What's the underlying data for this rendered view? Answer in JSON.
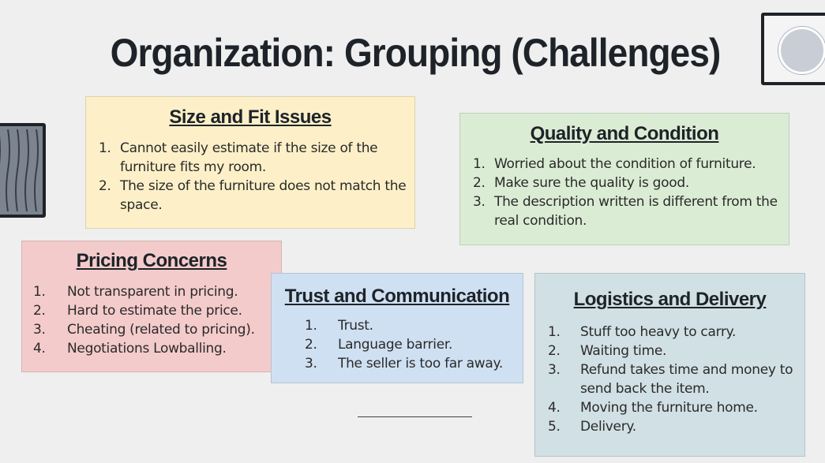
{
  "slide": {
    "title": "Organization: Grouping (Challenges)"
  },
  "cards": {
    "size": {
      "heading": "Size and Fit Issues",
      "color": "#fdf0c8",
      "items": [
        {
          "num": "1.",
          "text": "Cannot easily estimate if the size of the furniture fits my room."
        },
        {
          "num": "2.",
          "text": "The size of the furniture does not match the space."
        }
      ]
    },
    "quality": {
      "heading": "Quality and Condition",
      "color": "#dbecd4",
      "items": [
        {
          "num": "1.",
          "text": "Worried about the condition of furniture."
        },
        {
          "num": "2.",
          "text": "Make sure the quality is good."
        },
        {
          "num": "3.",
          "text": "The description written is different from the real condition."
        }
      ]
    },
    "pricing": {
      "heading": "Pricing Concerns",
      "color": "#f4cbcb",
      "items": [
        {
          "num": "1.",
          "text": "Not transparent in pricing."
        },
        {
          "num": "2.",
          "text": "Hard to estimate the price."
        },
        {
          "num": "3.",
          "text": "Cheating (related to pricing)."
        },
        {
          "num": "4.",
          "text": "Negotiations Lowballing."
        }
      ]
    },
    "trust": {
      "heading": "Trust and Communication",
      "color": "#cfe0f2",
      "items": [
        {
          "num": "1.",
          "text": "Trust."
        },
        {
          "num": "2.",
          "text": "Language barrier."
        },
        {
          "num": "3.",
          "text": "The seller is too far away."
        }
      ]
    },
    "logistics": {
      "heading": "Logistics and Delivery",
      "color": "#d1e0e4",
      "items": [
        {
          "num": "1.",
          "text": "Stuff too heavy to carry."
        },
        {
          "num": "2.",
          "text": "Waiting time."
        },
        {
          "num": "3.",
          "text": "Refund takes time and money to send back the item."
        },
        {
          "num": "4.",
          "text": "Moving the furniture home."
        },
        {
          "num": "5.",
          "text": "Delivery."
        }
      ]
    }
  },
  "decorations": {
    "left_frame": "striped-picture-frame-icon",
    "right_frame": "round-mirror-frame-icon"
  }
}
